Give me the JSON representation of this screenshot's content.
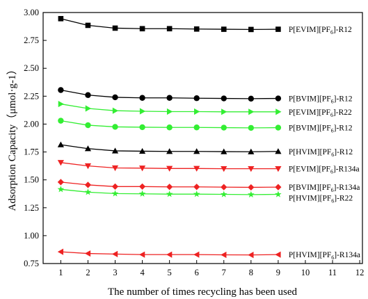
{
  "chart_data": {
    "type": "line",
    "xlabel": "The number of times recycling has been used",
    "ylabel": "Adsorption Capacity（μmol·g-1）",
    "xlim": [
      0.35,
      12.1
    ],
    "ylim": [
      0.75,
      3.0
    ],
    "x_ticks": [
      "1",
      "2",
      "3",
      "4",
      "5",
      "6",
      "7",
      "8",
      "9",
      "10",
      "11",
      "12"
    ],
    "y_ticks": [
      "0.75",
      "1.00",
      "1.25",
      "1.50",
      "1.75",
      "2.00",
      "2.25",
      "2.50",
      "2.75",
      "3.00"
    ],
    "x": [
      1,
      2,
      3,
      4,
      5,
      6,
      7,
      8,
      9
    ],
    "series": [
      {
        "name": "P[EVIM][PF6]-R12",
        "label_main": "P[EVIM][PF",
        "label_sub": "6",
        "label_end": "]-R12",
        "color": "#000000",
        "marker": "square",
        "values": [
          2.945,
          2.885,
          2.86,
          2.855,
          2.855,
          2.852,
          2.85,
          2.848,
          2.85
        ]
      },
      {
        "name": "P[BVIM][PF6]-R12",
        "label_main": "P[BVIM][PF",
        "label_sub": "6",
        "label_end": "]-R12",
        "color": "#000000",
        "marker": "circle",
        "values": [
          2.305,
          2.26,
          2.24,
          2.235,
          2.235,
          2.232,
          2.23,
          2.228,
          2.23
        ]
      },
      {
        "name": "P[EVIM][PF6]-R22",
        "label_main": "P[EVIM][PF",
        "label_sub": "6",
        "label_end": "]-R22",
        "color": "#33ee33",
        "marker": "triangle-right",
        "values": [
          2.18,
          2.14,
          2.12,
          2.115,
          2.112,
          2.112,
          2.11,
          2.11,
          2.11
        ]
      },
      {
        "name": "P[BVIM][PF6]-R12",
        "label_main": "P[BVIM][PF",
        "label_sub": "6",
        "label_end": "]-R12",
        "color": "#33ee33",
        "marker": "circle",
        "values": [
          2.03,
          1.99,
          1.975,
          1.972,
          1.97,
          1.97,
          1.968,
          1.966,
          1.968
        ]
      },
      {
        "name": "P[HVIM][PF6]-R12",
        "label_main": "P[HVIM][PF",
        "label_sub": "6",
        "label_end": "]-R12",
        "color": "#000000",
        "marker": "triangle-up",
        "values": [
          1.815,
          1.78,
          1.76,
          1.757,
          1.755,
          1.755,
          1.753,
          1.752,
          1.755
        ]
      },
      {
        "name": "P[EVIM][PF6]-R134a",
        "label_main": "P[EVIM][PF",
        "label_sub": "6",
        "label_end": "]-R134a",
        "color": "#ee2222",
        "marker": "triangle-down",
        "values": [
          1.655,
          1.625,
          1.607,
          1.605,
          1.602,
          1.602,
          1.6,
          1.6,
          1.6
        ]
      },
      {
        "name": "P[BVIM][PF6]-R134a",
        "label_main": "P[BVIM][PF",
        "label_sub": "6",
        "label_end": "]-R134a",
        "color": "#ee2222",
        "marker": "diamond",
        "values": [
          1.48,
          1.455,
          1.44,
          1.44,
          1.437,
          1.437,
          1.435,
          1.433,
          1.435
        ]
      },
      {
        "name": "P[HVIM][PF6]-R22",
        "label_main": "P[HVIM][PF",
        "label_sub": "6",
        "label_end": "]-R22",
        "color": "#33ee33",
        "marker": "star",
        "values": [
          1.415,
          1.39,
          1.377,
          1.375,
          1.372,
          1.372,
          1.37,
          1.368,
          1.37
        ]
      },
      {
        "name": "P[HVIM][PF6]-R134a",
        "label_main": "P[HVIM][PF",
        "label_sub": "6",
        "label_end": "]-R134a",
        "color": "#ee2222",
        "marker": "triangle-left",
        "values": [
          0.855,
          0.84,
          0.835,
          0.83,
          0.83,
          0.83,
          0.828,
          0.827,
          0.83
        ]
      }
    ],
    "grid": false,
    "legend": "inline-right"
  }
}
